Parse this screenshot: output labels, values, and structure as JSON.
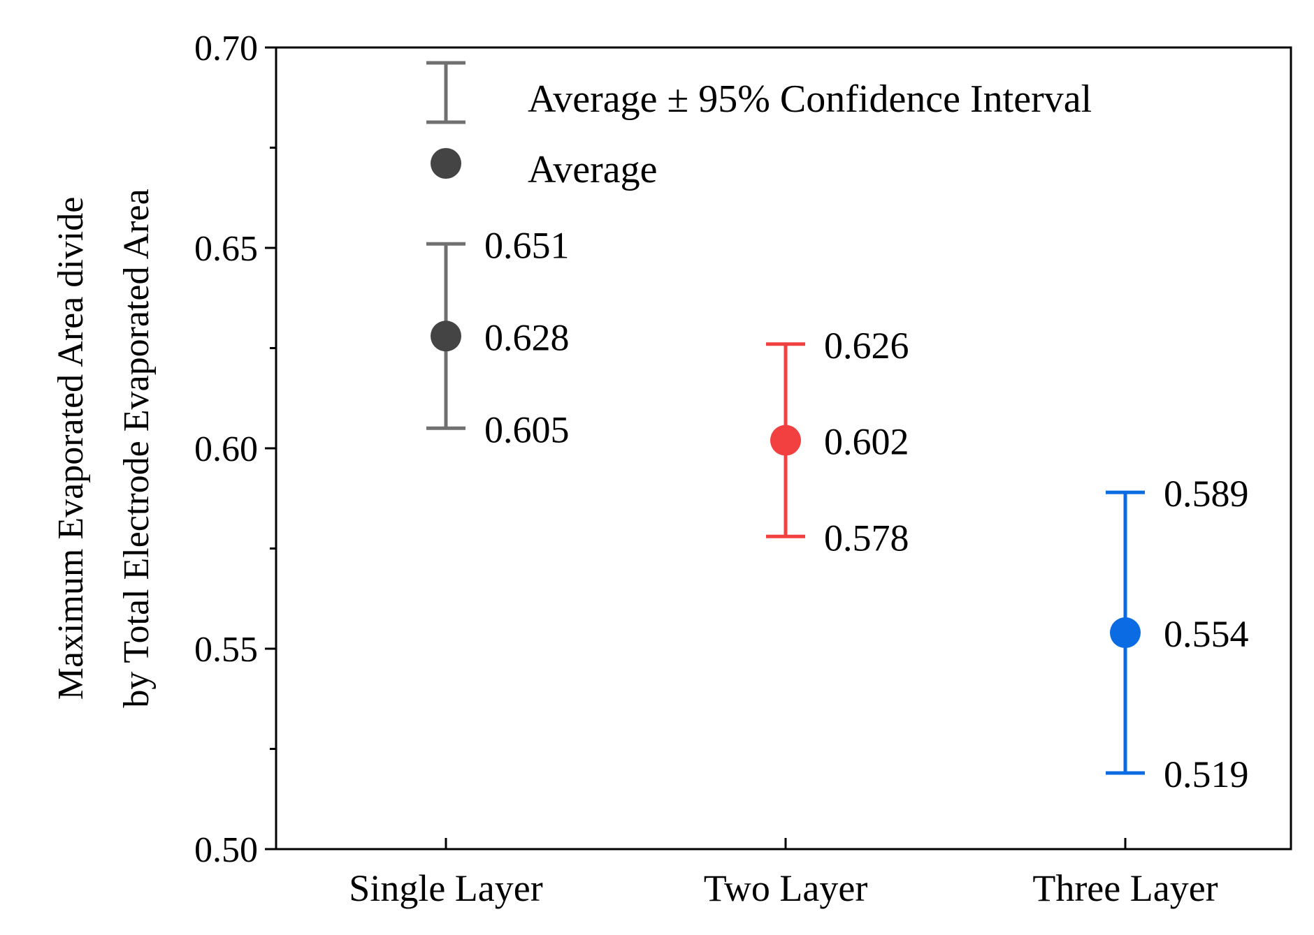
{
  "chart_data": {
    "type": "scatter",
    "title": "",
    "xlabel": "",
    "ylabel_lines": [
      "Maximum Evaporated Area divide",
      "by Total Electrode Evaporated Area"
    ],
    "ylim": [
      0.5,
      0.7
    ],
    "yticks": [
      "0.50",
      "0.55",
      "0.60",
      "0.65",
      "0.70"
    ],
    "categories": [
      "Single Layer",
      "Two Layer",
      "Three Layer"
    ],
    "series": [
      {
        "name": "Single Layer",
        "average": 0.628,
        "lower": 0.605,
        "upper": 0.651,
        "labels": {
          "upper": "0.651",
          "average": "0.628",
          "lower": "0.605"
        },
        "color": "#444444",
        "bar_color": "#707070"
      },
      {
        "name": "Two Layer",
        "average": 0.602,
        "lower": 0.578,
        "upper": 0.626,
        "labels": {
          "upper": "0.626",
          "average": "0.602",
          "lower": "0.578"
        },
        "color": "#f24040",
        "bar_color": "#f24040"
      },
      {
        "name": "Three Layer",
        "average": 0.554,
        "lower": 0.519,
        "upper": 0.589,
        "labels": {
          "upper": "0.589",
          "average": "0.554",
          "lower": "0.519"
        },
        "color": "#0a6be3",
        "bar_color": "#0a6be3"
      }
    ],
    "legend": {
      "placement": "top",
      "items": [
        {
          "label": "Average ± 95% Confidence Interval",
          "symbol": "error-bar"
        },
        {
          "label": "Average",
          "symbol": "dot"
        }
      ]
    }
  }
}
